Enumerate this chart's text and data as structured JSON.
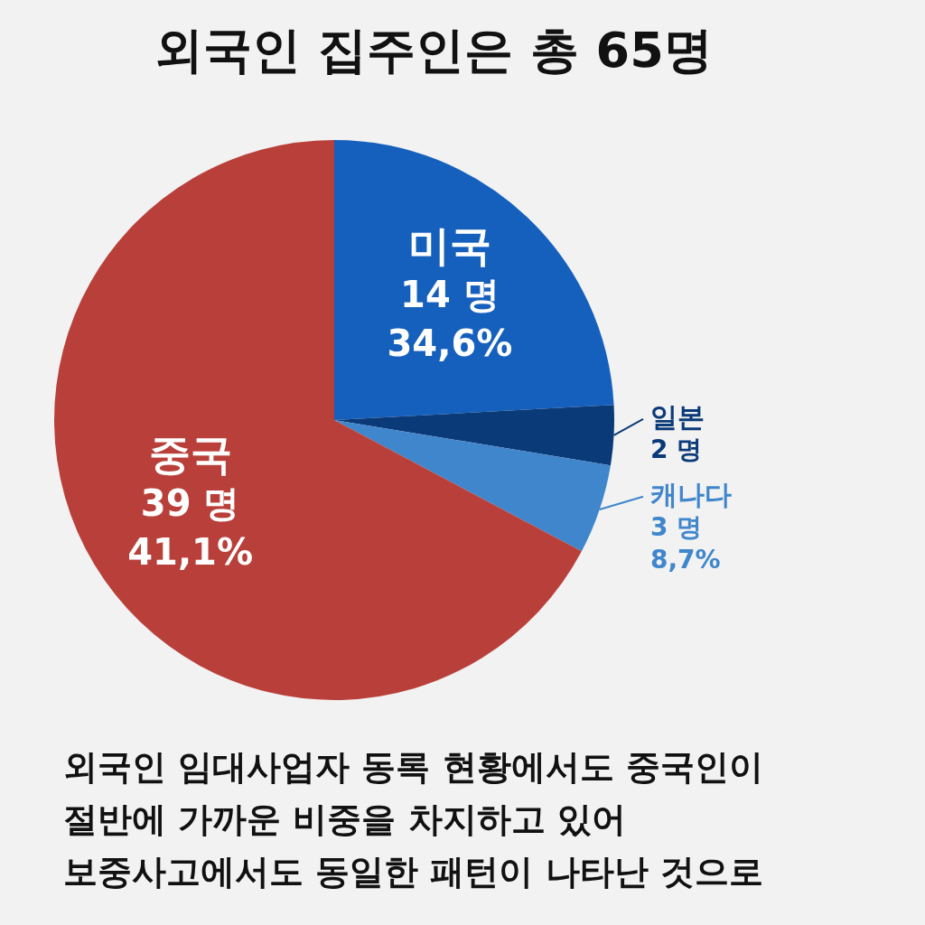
{
  "chart_data": {
    "type": "pie",
    "title": "외국인 집주인은 총 65명",
    "categories": [
      "미국",
      "일본",
      "캐나다",
      "중국"
    ],
    "values": [
      14,
      2,
      3,
      39
    ],
    "value_labels": [
      "14 명\n34,6%",
      "2 명",
      "3 명\n8,7%",
      "39 명\n41,1%"
    ],
    "colors": [
      "#1560bd",
      "#0b3a78",
      "#3f86cc",
      "#b9403a"
    ],
    "legend": false,
    "annotations": [
      "외국인 임대사업자 동록 현황에서도 중국인이\n절반에 가까운 비중을 차지하고 있어\n보중사고에서도 동일한 패턴이 나타난 것으로"
    ]
  }
}
